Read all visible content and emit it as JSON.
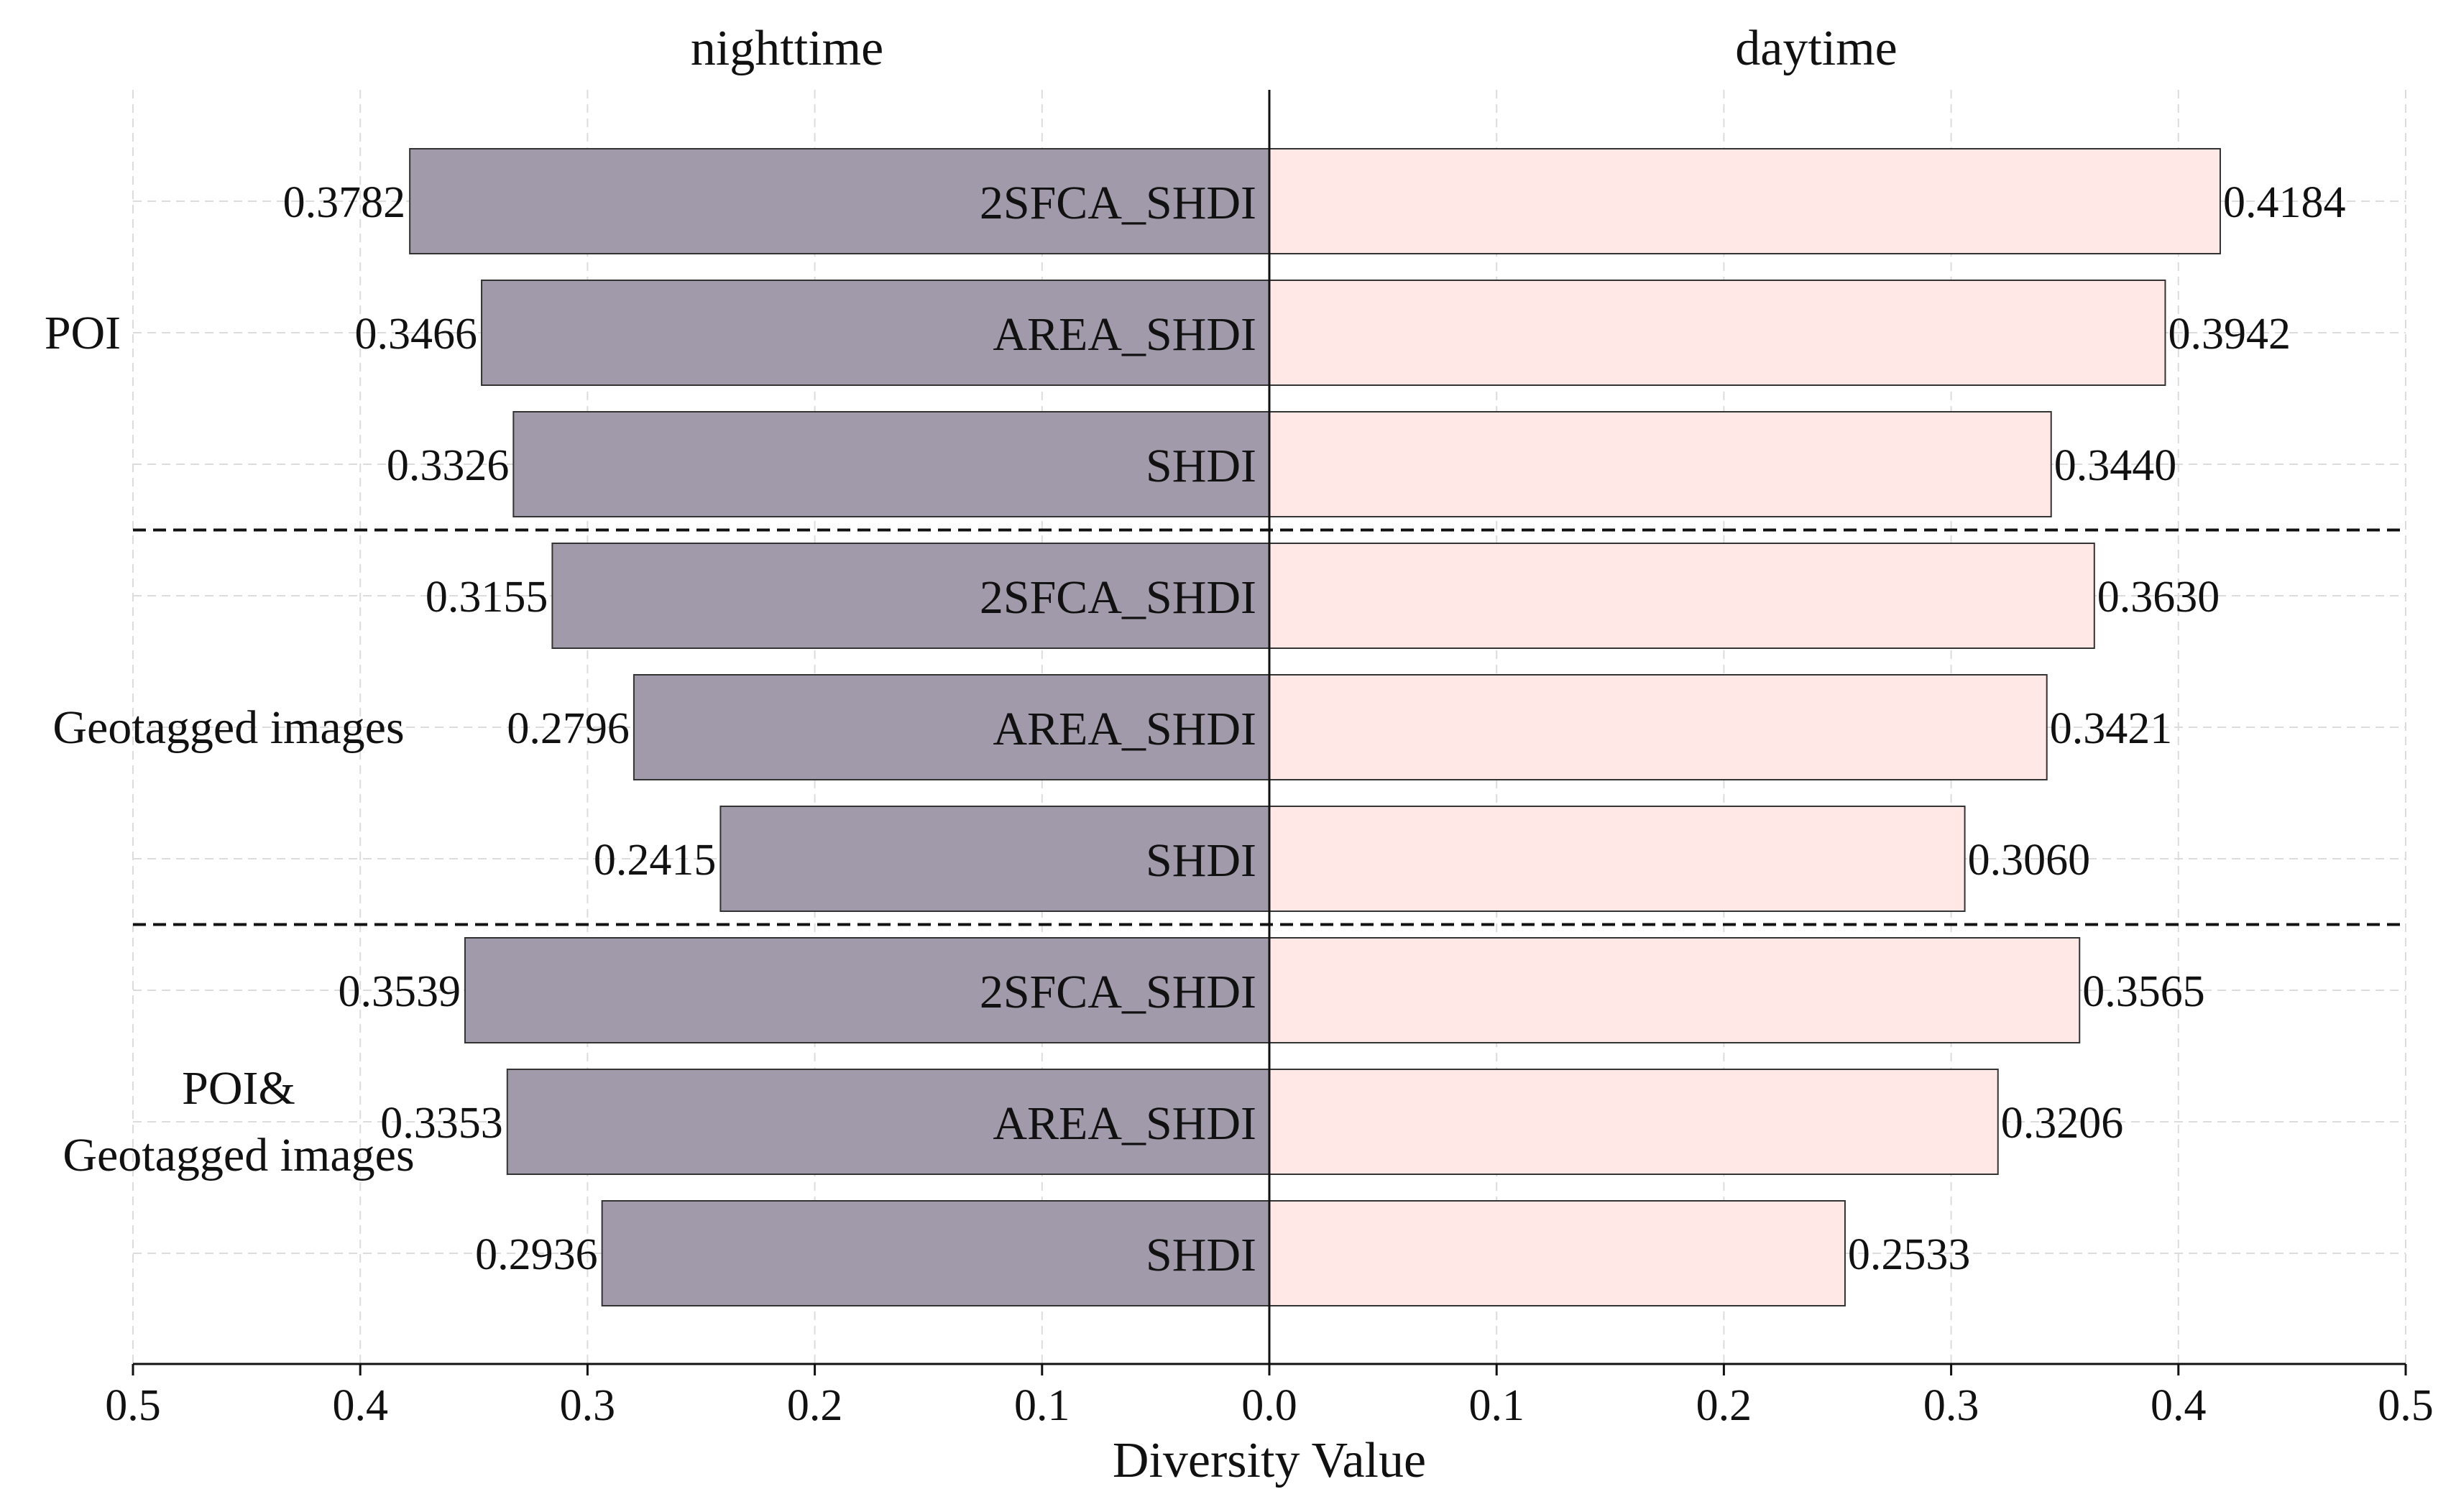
{
  "chart_data": {
    "type": "bar",
    "orientation": "horizontal",
    "layout": "butterfly",
    "xlabel": "Diversity Value",
    "xlim": [
      0,
      0.5
    ],
    "xticks": [
      0.5,
      0.4,
      0.3,
      0.2,
      0.1,
      0.0,
      0.1,
      0.2,
      0.3,
      0.4,
      0.5
    ],
    "tick_labels": [
      "0.5",
      "0.4",
      "0.3",
      "0.2",
      "0.1",
      "0.0",
      "0.1",
      "0.2",
      "0.3",
      "0.4",
      "0.5"
    ],
    "panels": [
      {
        "name": "nighttime",
        "side": "left",
        "color": "#a19aaa"
      },
      {
        "name": "daytime",
        "side": "right",
        "color": "#ffe8e6"
      }
    ],
    "groups": [
      {
        "name": "POI",
        "label_lines": [
          "POI"
        ],
        "rows": [
          {
            "metric": "2SFCA_SHDI",
            "nighttime": 0.3782,
            "daytime": 0.4184,
            "night_label": "0.3782",
            "day_label": "0.4184"
          },
          {
            "metric": "AREA_SHDI",
            "nighttime": 0.3466,
            "daytime": 0.3942,
            "night_label": "0.3466",
            "day_label": "0.3942"
          },
          {
            "metric": "SHDI",
            "nighttime": 0.3326,
            "daytime": 0.344,
            "night_label": "0.3326",
            "day_label": "0.3440"
          }
        ]
      },
      {
        "name": "Geotagged images",
        "label_lines": [
          "Geotagged images"
        ],
        "rows": [
          {
            "metric": "2SFCA_SHDI",
            "nighttime": 0.3155,
            "daytime": 0.363,
            "night_label": "0.3155",
            "day_label": "0.3630"
          },
          {
            "metric": "AREA_SHDI",
            "nighttime": 0.2796,
            "daytime": 0.3421,
            "night_label": "0.2796",
            "day_label": "0.3421"
          },
          {
            "metric": "SHDI",
            "nighttime": 0.2415,
            "daytime": 0.306,
            "night_label": "0.2415",
            "day_label": "0.3060"
          }
        ]
      },
      {
        "name": "POI& Geotagged images",
        "label_lines": [
          "POI&",
          "Geotagged images"
        ],
        "rows": [
          {
            "metric": "2SFCA_SHDI",
            "nighttime": 0.3539,
            "daytime": 0.3565,
            "night_label": "0.3539",
            "day_label": "0.3565"
          },
          {
            "metric": "AREA_SHDI",
            "nighttime": 0.3353,
            "daytime": 0.3206,
            "night_label": "0.3353",
            "day_label": "0.3206"
          },
          {
            "metric": "SHDI",
            "nighttime": 0.2936,
            "daytime": 0.2533,
            "night_label": "0.2936",
            "day_label": "0.2533"
          }
        ]
      }
    ],
    "grid": true,
    "group_separators": "dashed"
  }
}
